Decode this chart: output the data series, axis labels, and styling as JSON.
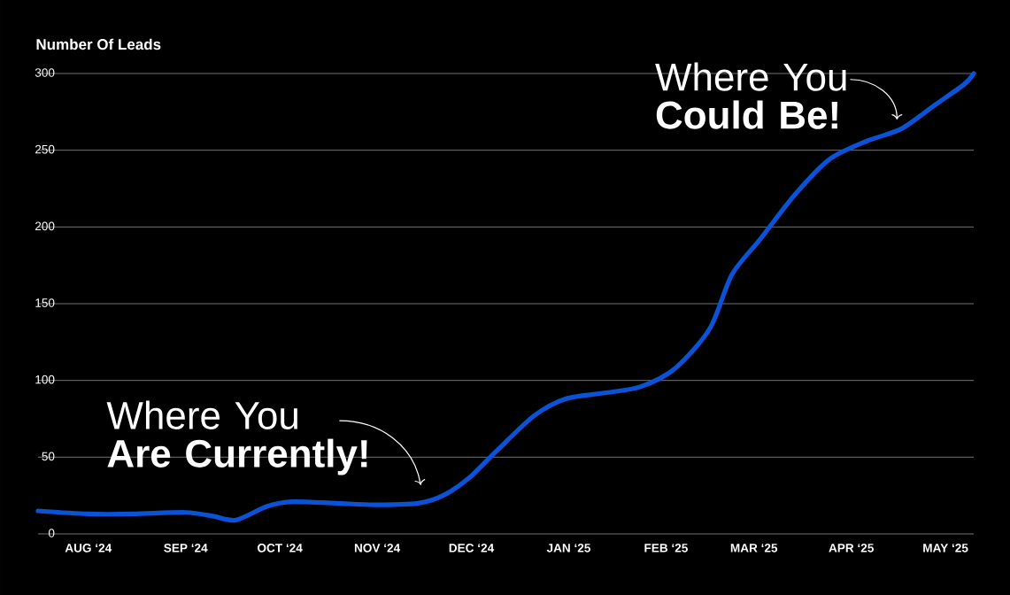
{
  "chart_data": {
    "type": "line",
    "ylabel": "Number Of Leads",
    "x": [
      "2024-07-16",
      "2024-08-01",
      "2024-08-15",
      "2024-09-01",
      "2024-09-10",
      "2024-09-17",
      "2024-09-27",
      "2024-10-05",
      "2024-10-19",
      "2024-10-31",
      "2024-11-14",
      "2024-11-22",
      "2024-11-30",
      "2024-12-09",
      "2024-12-21",
      "2024-12-31",
      "2025-01-13",
      "2025-01-24",
      "2025-02-04",
      "2025-02-15",
      "2025-02-22",
      "2025-03-03",
      "2025-03-14",
      "2025-03-25",
      "2025-04-06",
      "2025-04-17",
      "2025-04-28",
      "2025-05-07",
      "2025-05-10"
    ],
    "values": [
      15,
      13,
      13,
      14,
      11.5,
      9,
      18,
      21,
      20,
      19,
      20,
      25,
      36,
      54,
      77,
      88,
      92,
      96,
      108,
      134,
      169,
      192,
      221,
      244,
      256,
      264,
      280,
      293,
      300
    ],
    "color": "#0a52d6",
    "xlim": [
      "2024-07-16",
      "2025-05-10"
    ],
    "xticks": [
      {
        "value": "2024-08",
        "label": "AUG ‘24"
      },
      {
        "value": "2024-09",
        "label": "SEP ‘24"
      },
      {
        "value": "2024-10",
        "label": "OCT ‘24"
      },
      {
        "value": "2024-11",
        "label": "NOV ‘24"
      },
      {
        "value": "2024-12",
        "label": "DEC ‘24"
      },
      {
        "value": "2025-01",
        "label": "JAN ‘25"
      },
      {
        "value": "2025-02",
        "label": "FEB ‘25"
      },
      {
        "value": "2025-03",
        "label": "MAR ‘25"
      },
      {
        "value": "2025-04",
        "label": "APR ‘25"
      },
      {
        "value": "2025-05",
        "label": "MAY ‘25"
      }
    ],
    "ylim": [
      0,
      300
    ],
    "yticks": [
      0,
      50,
      100,
      150,
      200,
      250,
      300
    ],
    "grid": "y",
    "annotations": [
      "Where You **Are Currently!**",
      "Where You **Could Be!**"
    ]
  }
}
